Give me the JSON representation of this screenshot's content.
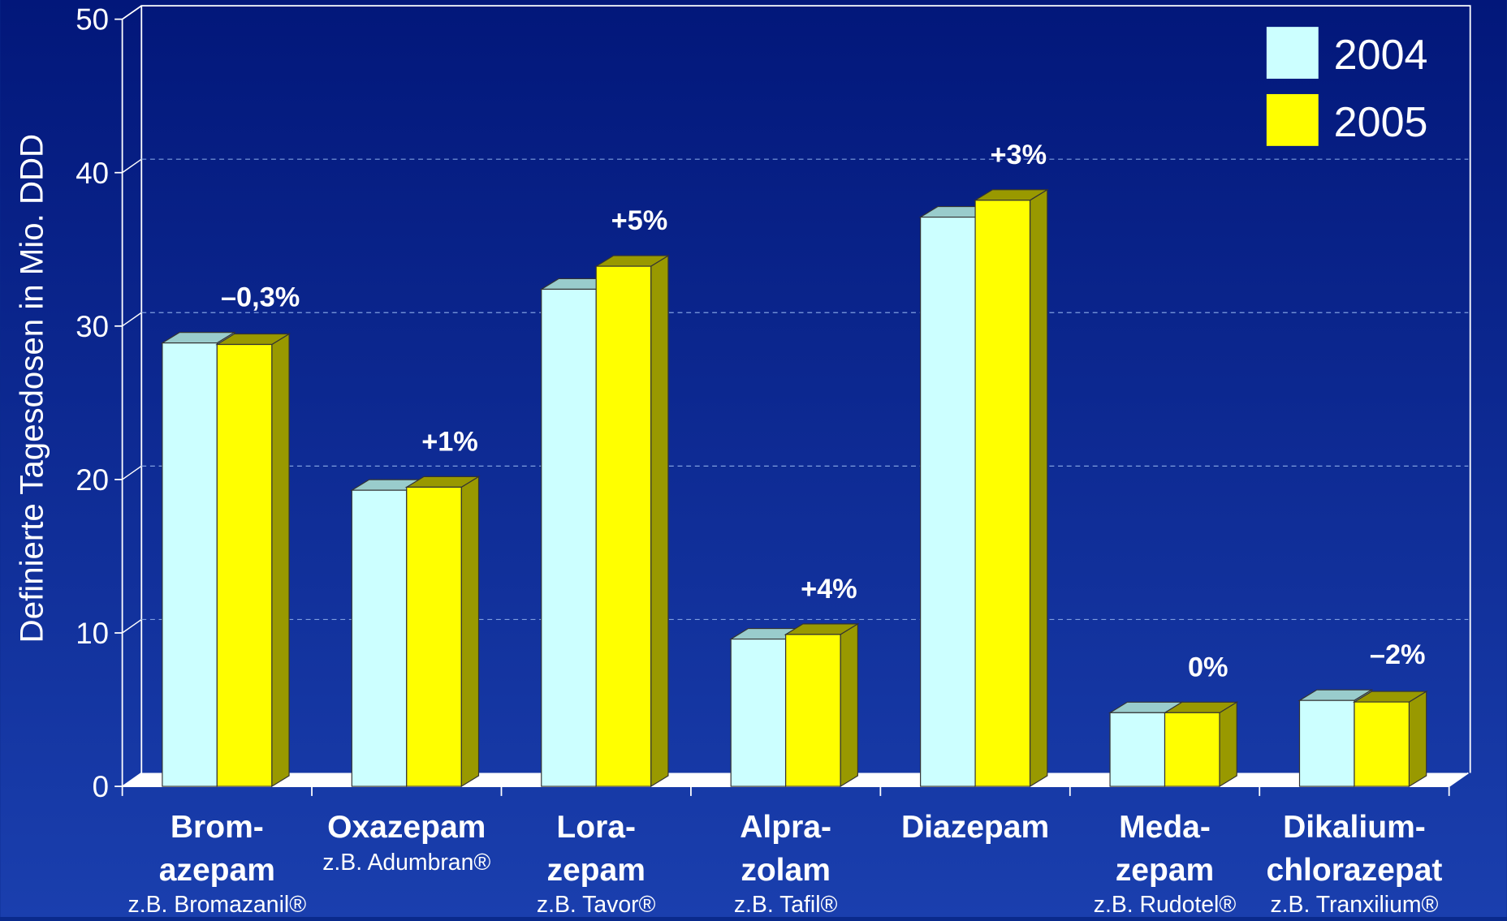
{
  "chart_data": {
    "type": "bar3d",
    "ylabel": "Definierte Tagesdosen in  Mio. DDD",
    "categories": [
      [
        "Brom-",
        "azepam"
      ],
      [
        "Oxazepam"
      ],
      [
        "Lora-",
        "zepam"
      ],
      [
        "Alpra-",
        "zolam"
      ],
      [
        "Diazepam"
      ],
      [
        "Meda-",
        "zepam"
      ],
      [
        "Dikalium-",
        "chlorazepat"
      ]
    ],
    "brands": [
      "z.B. Bromazanil®",
      "z.B. Adumbran®",
      "z.B. Tavor®",
      "z.B. Tafil®",
      null,
      "z.B. Rudotel®",
      "z.B. Tranxilium®"
    ],
    "change_labels": [
      "–0,3%",
      "+1%",
      "+5%",
      "+4%",
      "+3%",
      "0%",
      "–2%"
    ],
    "series": [
      {
        "name": "2004",
        "color": "#ccffff",
        "side": "#99cccc",
        "values": [
          28.9,
          19.3,
          32.4,
          9.6,
          37.1,
          4.8,
          5.6
        ]
      },
      {
        "name": "2005",
        "color": "#ffff00",
        "side": "#999900",
        "values": [
          28.8,
          19.5,
          33.9,
          9.9,
          38.2,
          4.8,
          5.5
        ]
      }
    ],
    "ylim": [
      0,
      50
    ],
    "yticks": [
      0,
      10,
      20,
      30,
      40,
      50
    ],
    "grid": true,
    "legend": "top-right"
  }
}
